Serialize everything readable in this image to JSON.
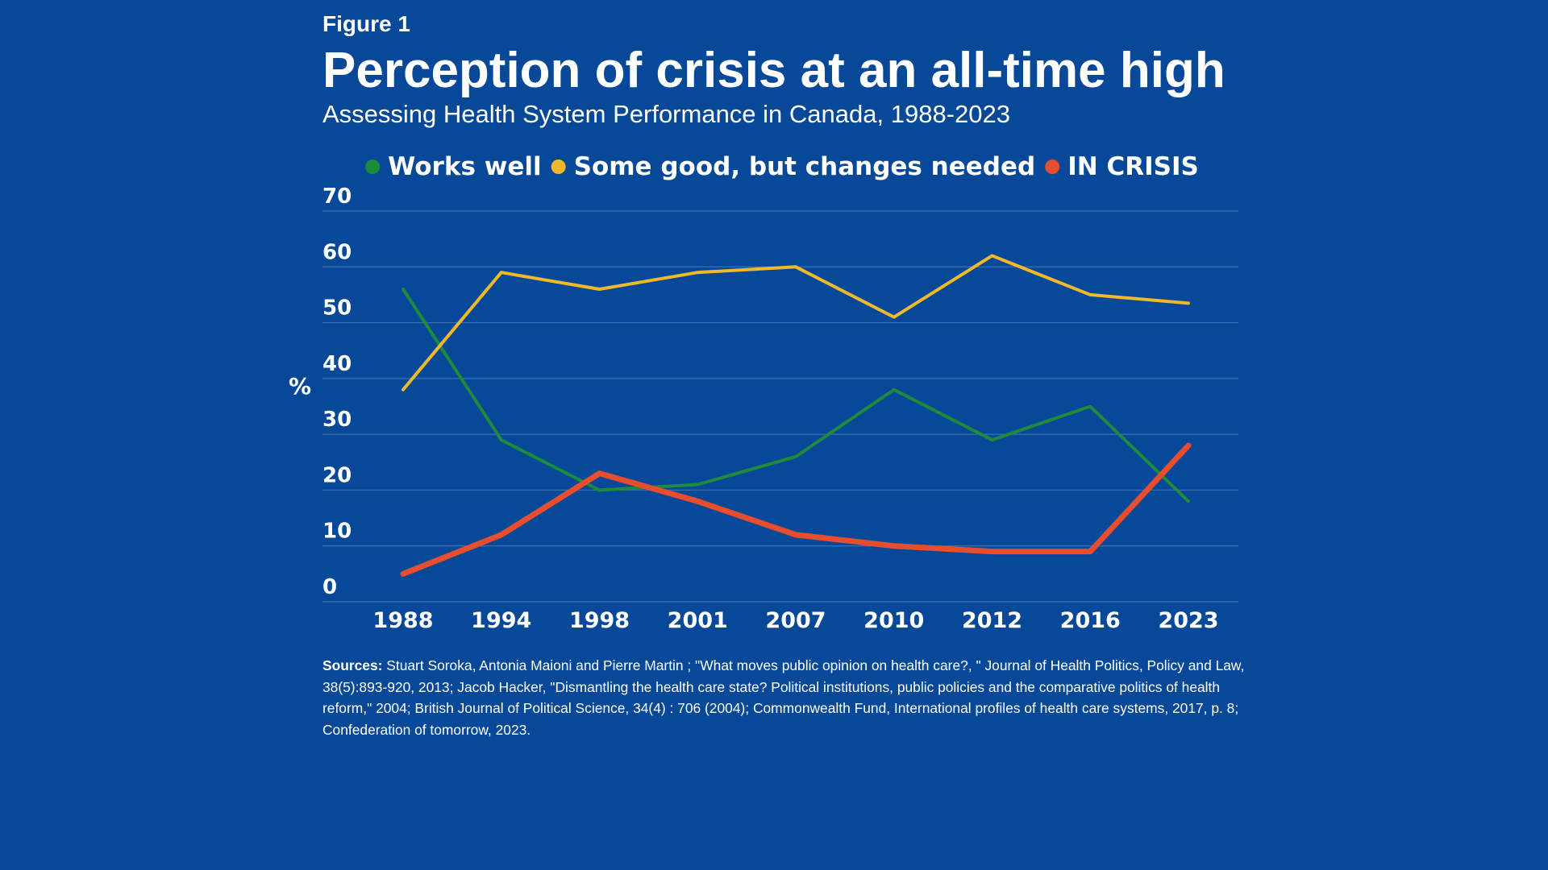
{
  "figure_label": "Figure 1",
  "title": "Perception of crisis at an all-time high",
  "subtitle": "Assessing Health System Performance in Canada, 1988-2023",
  "sources": {
    "label": "Sources:",
    "text": "Stuart Soroka, Antonia Maioni and Pierre Martin ; \"What moves public opinion on health care?, \" Journal of Health Politics, Policy and Law, 38(5):893-920, 2013; Jacob Hacker, \"Dismantling the health care state? Political institutions, public policies and the comparative politics of health reform,\" 2004; British Journal of Political Science, 34(4) : 706 (2004); Commonwealth Fund, International profiles of health care systems, 2017, p. 8; Confederation of tomorrow, 2023."
  },
  "colors": {
    "background": "#074998",
    "works_well": "#1e8a3c",
    "some_good": "#f0b92a",
    "in_crisis": "#e84e2d",
    "grid": "#3e70b0",
    "text": "#ffffff"
  },
  "chart_data": {
    "type": "line",
    "title": "Perception of crisis at an all-time high",
    "xlabel": "",
    "ylabel": "%",
    "categories": [
      "1988",
      "1994",
      "1998",
      "2001",
      "2007",
      "2010",
      "2012",
      "2016",
      "2023"
    ],
    "ylim": [
      0,
      70
    ],
    "yticks": [
      0,
      10,
      20,
      30,
      40,
      50,
      60,
      70
    ],
    "grid": true,
    "legend_position": "top-center",
    "series": [
      {
        "name": "Works well",
        "color": "#1e8a3c",
        "values": [
          56,
          29,
          20,
          21,
          26,
          38,
          29,
          35,
          18
        ]
      },
      {
        "name": "Some good, but changes needed",
        "color": "#f0b92a",
        "values": [
          38,
          59,
          56,
          59,
          60,
          51,
          62,
          55,
          53.5
        ]
      },
      {
        "name": "IN CRISIS",
        "color": "#e84e2d",
        "values": [
          5,
          12,
          23,
          18,
          12,
          10,
          9,
          9,
          28
        ]
      }
    ]
  }
}
